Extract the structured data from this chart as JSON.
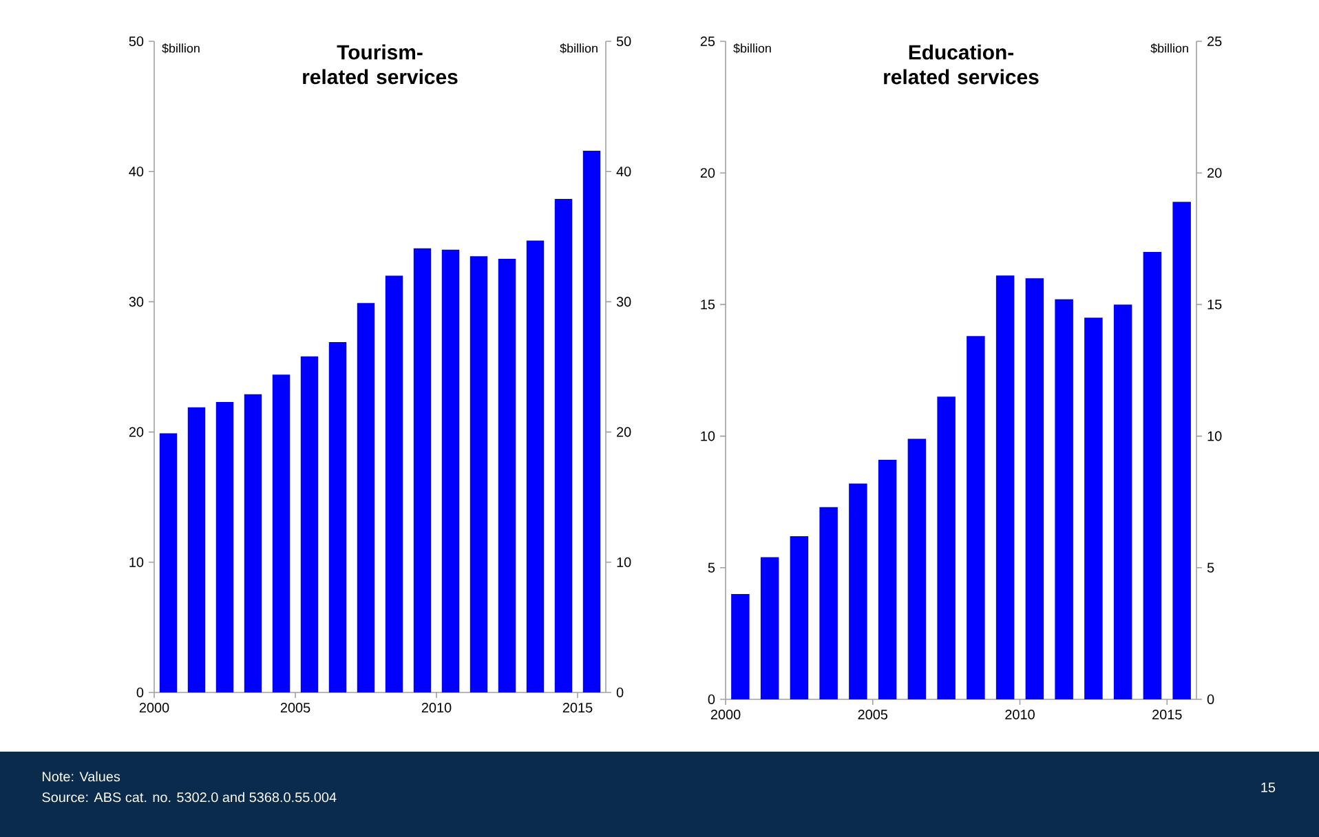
{
  "chart_data": [
    {
      "type": "bar",
      "title": "Tourism-related services",
      "ylabel": "$billion",
      "y2label": "$billion",
      "color": "#0000ff",
      "x": [
        2000.5,
        2001.5,
        2002.5,
        2003.5,
        2004.5,
        2005.5,
        2006.5,
        2007.5,
        2008.5,
        2009.5,
        2010.5,
        2011.5,
        2012.5,
        2013.5,
        2014.5,
        2015.5
      ],
      "values": [
        19.9,
        21.9,
        22.3,
        22.9,
        24.4,
        25.8,
        26.9,
        29.9,
        32.0,
        34.1,
        34.0,
        33.5,
        33.3,
        34.7,
        37.9,
        41.6
      ],
      "xlim": [
        2000,
        2016
      ],
      "xticks": [
        2000,
        2005,
        2010,
        2015
      ],
      "ylim": [
        0,
        50
      ],
      "yticks": [
        0,
        10,
        20,
        30,
        40,
        50
      ],
      "y2lim": [
        0,
        50
      ],
      "y2ticks": [
        0,
        10,
        20,
        30,
        40,
        50
      ],
      "annotations": [
        "Note: Values",
        "Source:  ABS cat. no. 5302.0  and 5368.0.55.004",
        "15"
      ]
    },
    {
      "type": "bar",
      "title": "Education-related services",
      "ylabel": "$billion",
      "y2label": "$billion",
      "color": "#0000ff",
      "x": [
        2000.5,
        2001.5,
        2002.5,
        2003.5,
        2004.5,
        2005.5,
        2006.5,
        2007.5,
        2008.5,
        2009.5,
        2010.5,
        2011.5,
        2012.5,
        2013.5,
        2014.5,
        2015.5
      ],
      "values": [
        4.0,
        5.4,
        6.2,
        7.3,
        8.2,
        9.1,
        9.9,
        11.5,
        13.8,
        16.1,
        16.0,
        15.2,
        14.5,
        15.0,
        17.0,
        18.9
      ],
      "xlim": [
        2000,
        2016
      ],
      "xticks": [
        2000,
        2005,
        2010,
        2015
      ],
      "ylim": [
        0,
        25
      ],
      "yticks": [
        0,
        5,
        10,
        15,
        20,
        25
      ],
      "y2lim": [
        0,
        25
      ],
      "y2ticks": [
        0,
        5,
        10,
        15,
        20,
        25
      ]
    }
  ]
}
